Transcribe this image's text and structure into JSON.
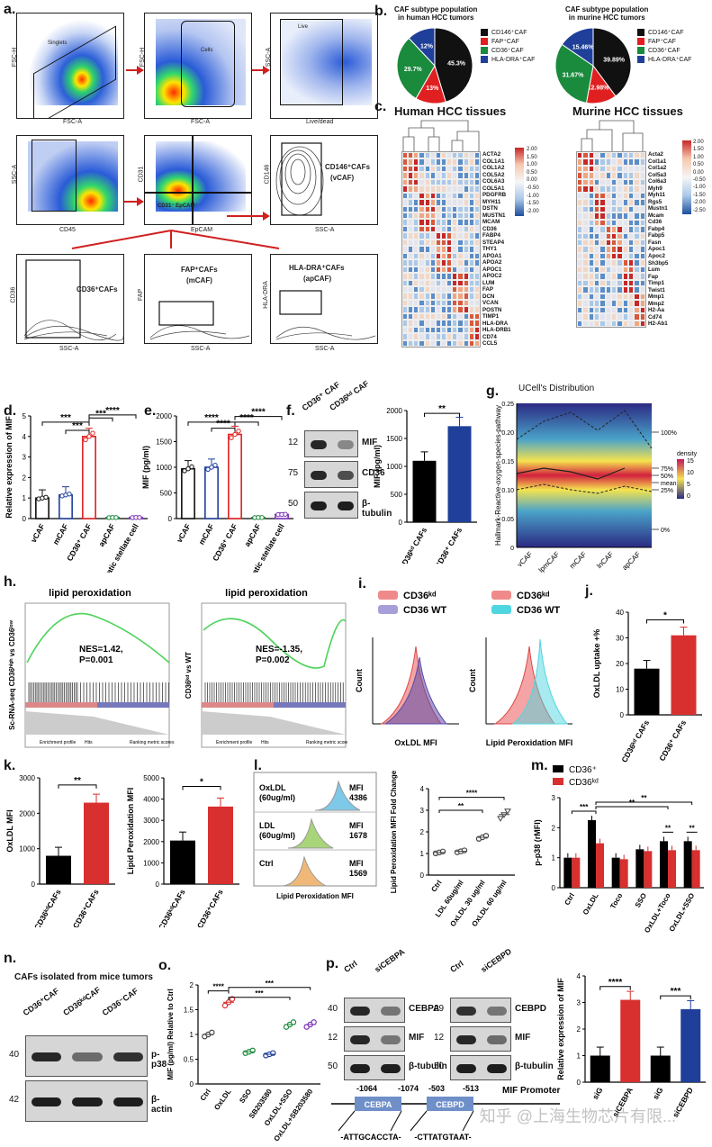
{
  "panels": {
    "a": "a.",
    "b": "b.",
    "c": "c.",
    "d": "d.",
    "e": "e.",
    "f": "f.",
    "g": "g.",
    "h": "h.",
    "i": "i.",
    "j": "j.",
    "k": "k.",
    "l": "l.",
    "m": "m.",
    "n": "n.",
    "o": "o.",
    "p": "p."
  },
  "flow": {
    "singlets": "Singlets",
    "cells": "Cells",
    "live": "Live",
    "cd146_caf": "CD146⁺CAFs",
    "cd146_caf_sub": "(vCAF)",
    "cd31_epcam": "CD31⁻ EpCAM⁻",
    "cd36_caf": "CD36⁺CAFs",
    "fap_caf": "FAP⁺CAFs",
    "fap_caf_sub": "(mCAF)",
    "hla_caf": "HLA-DRA⁺CAFs",
    "hla_caf_sub": "(apCAF)",
    "axes": {
      "fsc_h": "FSC-H",
      "fsc_a": "FSC-A",
      "ssc_a": "SSC-A",
      "live_dead": "Live/dead",
      "cd45": "CD45",
      "cd31": "CD31",
      "epcam": "EpCAM",
      "cd146": "CD146",
      "cd36": "CD36",
      "fap": "FAP",
      "hla_dra": "HLA-DRA"
    }
  },
  "pies": {
    "human_title": "CAF subtype population\nin human HCC tumors",
    "murine_title": "CAF subtype population\nin murine HCC tumors",
    "legend": [
      "CD146⁺CAF",
      "FAP⁺CAF",
      "CD36⁺CAF",
      "HLA-DRA⁺CAF"
    ],
    "colors": [
      "#111111",
      "#e02020",
      "#1a8a3c",
      "#1f3f9a"
    ],
    "human_values": [
      "45.3%",
      "13%",
      "29.7%",
      "12%"
    ],
    "murine_values": [
      "39.89%",
      "12.98%",
      "31.67%",
      "15.46%"
    ]
  },
  "heatmaps": {
    "human_title": "Human HCC tissues",
    "murine_title": "Murine HCC tissues",
    "human_genes": [
      "ACTA2",
      "COL1A1",
      "COL1A2",
      "COL5A2",
      "COL6A3",
      "COL5A1",
      "PDGFRB",
      "MYH11",
      "DSTN",
      "MUSTN1",
      "MCAM",
      "CD36",
      "FABP4",
      "STEAP4",
      "THY1",
      "APOA1",
      "APOA2",
      "APOC1",
      "APOC2",
      "LUM",
      "FAP",
      "DCN",
      "VCAN",
      "POSTN",
      "TIMP1",
      "HLA-DRA",
      "HLA-DRB1",
      "CD74",
      "CCL5"
    ],
    "murine_genes": [
      "Acta2",
      "Col1a1",
      "Col1a2",
      "Col5a3",
      "Col6a3",
      "Myh9",
      "Myh11",
      "Rgs5",
      "Mustn1",
      "Mcam",
      "Cd36",
      "Fabp4",
      "Fabp5",
      "Fasn",
      "Apoc1",
      "Apoc2",
      "Sh3bp5",
      "Lum",
      "Fap",
      "Timp1",
      "Twist1",
      "Mmp1",
      "Mmp2",
      "H2-Aa",
      "Cd74",
      "H2-Ab1"
    ],
    "human_scale": [
      "2.00",
      "1.50",
      "1.00",
      "0.50",
      "0.00",
      "-0.50",
      "-1.00",
      "-1.50",
      "-2.00"
    ],
    "murine_scale": [
      "2.00",
      "1.50",
      "1.00",
      "0.50",
      "0.00",
      "-0.50",
      "-1.00",
      "-1.50",
      "-2.00",
      "-2.50"
    ]
  },
  "chart_data": [
    {
      "panel": "d",
      "type": "bar",
      "categories": [
        "vCAF",
        "mCAF",
        "CD36⁺ CAF",
        "apCAF",
        "Hepatic stellate cell"
      ],
      "values": [
        1.0,
        1.15,
        4.0,
        0.05,
        0.05
      ],
      "ylabel": "Relative expression of MIF",
      "ylim": [
        0,
        5
      ],
      "significance": [
        "***",
        "***",
        "***",
        "****"
      ]
    },
    {
      "panel": "e",
      "type": "bar",
      "categories": [
        "vCAF",
        "mCAF",
        "CD36⁺ CAF",
        "apCAF",
        "Hepatic stellate cell"
      ],
      "values": [
        970,
        1000,
        1640,
        20,
        80
      ],
      "ylabel": "MIF (pg/ml)",
      "ylim": [
        0,
        2000
      ],
      "significance": [
        "****",
        "****",
        "****",
        "****"
      ]
    },
    {
      "panel": "f",
      "type": "bar",
      "categories": [
        "CD36ᵏᵈ CAFs",
        "CD36⁺ CAFs"
      ],
      "values": [
        1100,
        1720
      ],
      "ylabel": "MIF (pg/ml)",
      "ylim": [
        0,
        2000
      ],
      "significance": [
        "**"
      ]
    },
    {
      "panel": "j",
      "type": "bar",
      "categories": [
        "CD36ᵏᵈ CAFs",
        "CD36⁺ CAFs"
      ],
      "values": [
        18,
        31
      ],
      "ylabel": "OxLDL uptake +%",
      "ylim": [
        0,
        40
      ],
      "significance": [
        "*"
      ]
    },
    {
      "panel": "k1",
      "type": "bar",
      "categories": [
        "CD36ᵏᵈCAFs",
        "CD36⁺CAFs"
      ],
      "values": [
        800,
        2300
      ],
      "ylabel": "OxLDL MFI",
      "ylim": [
        0,
        3000
      ],
      "significance": [
        "**"
      ]
    },
    {
      "panel": "k2",
      "type": "bar",
      "categories": [
        "CD36ᵏᵈCAFs",
        "CD36⁺CAFs"
      ],
      "values": [
        2050,
        3650
      ],
      "ylabel": "Lipid Peroxidation MFI",
      "ylim": [
        0,
        5000
      ],
      "significance": [
        "*"
      ]
    },
    {
      "panel": "l",
      "type": "scatter",
      "categories": [
        "Ctrl",
        "LDL 60ug/ml",
        "OxLDL 30 ug/ml",
        "OxLDL 60 ug/ml"
      ],
      "values": [
        1.05,
        1.1,
        1.75,
        2.8
      ],
      "ylabel": "Lipid Peroxidation MFI Fold Change",
      "ylim": [
        0,
        4
      ],
      "significance": [
        "**",
        "****"
      ]
    },
    {
      "panel": "m",
      "type": "bar",
      "categories": [
        "Ctrl",
        "OxLDL",
        "Toco",
        "SSO",
        "OxLDL+Toco",
        "OxLDL+SSO"
      ],
      "series": [
        {
          "name": "CD36⁺",
          "values": [
            1.0,
            2.25,
            1.0,
            1.28,
            1.55,
            1.55
          ]
        },
        {
          "name": "CD36ᵏᵈ",
          "values": [
            1.0,
            1.48,
            0.95,
            1.22,
            1.25,
            1.25
          ]
        }
      ],
      "ylabel": "p-p38 (rMFI)",
      "ylim": [
        0,
        3
      ],
      "significance": [
        "***",
        "**",
        "**",
        "**",
        "**"
      ]
    },
    {
      "panel": "o",
      "type": "scatter",
      "categories": [
        "Ctrl",
        "OxLDL",
        "SSO",
        "SB203580",
        "OxLDL+SSO",
        "OxLDL+SB203580"
      ],
      "values": [
        1.0,
        1.65,
        0.65,
        0.6,
        1.2,
        1.2
      ],
      "ylabel": "MIF (pg/ml) Relative to Ctrl",
      "ylim": [
        0,
        2
      ],
      "significance": [
        "****",
        "***",
        "***"
      ]
    },
    {
      "panel": "p",
      "type": "bar",
      "categories": [
        "siG",
        "siCEBPA",
        "siG",
        "siCEBPD"
      ],
      "values": [
        1.0,
        3.1,
        1.0,
        2.75
      ],
      "ylabel": "Relative expression of MIF",
      "ylim": [
        0,
        4
      ],
      "significance": [
        "****",
        "***"
      ]
    }
  ],
  "g": {
    "title": "UCell's Distribution",
    "ylabel": "Hallmark-Reactive-oxygen-species-pathway",
    "categories": [
      "vCAF",
      "lpmCAF",
      "mCAF",
      "lnCAF",
      "apCAF"
    ],
    "right_labels": [
      "100%",
      "75%",
      "50%",
      "mean",
      "25%",
      "0%"
    ],
    "legend_title": "density",
    "legend_ticks": [
      "15",
      "10",
      "5",
      "0"
    ],
    "yticks": [
      "0.25",
      "0.20",
      "0.15",
      "0.10",
      "0.05",
      "0"
    ]
  },
  "h": {
    "title1": "lipid peroxidation",
    "title2": "lipid peroxidation",
    "stat1": "NES=1.42,\nP=0.001",
    "stat2": "NES=-1.35,\nP=0.002",
    "ylabel1": "Sc-RNA-seq CD36ʰⁱᵍʰ vs CD36ˡᵒʷ",
    "ylabel2": "CD36ᵏᵈ vs WT",
    "legend": [
      "Enrichment profile",
      "Hits",
      "Ranking metric scores"
    ]
  },
  "i": {
    "legend1": [
      "CD36ᵏᵈ",
      "CD36 WT"
    ],
    "legend2": [
      "CD36ᵏᵈ",
      "CD36 WT"
    ],
    "xlabel1": "OxLDL MFI",
    "xlabel2": "Lipid Peroxidation MFI",
    "ylabel": "Count"
  },
  "l_hist": {
    "rows": [
      {
        "label": "OxLDL\n(60ug/ml)",
        "mfi": "MFI\n4386"
      },
      {
        "label": "LDL\n(60ug/ml)",
        "mfi": "MFI\n1678"
      },
      {
        "label": "Ctrl",
        "mfi": "MFI\n1569"
      }
    ],
    "xlabel": "Lipid Peroxidation MFI"
  },
  "m_legend": [
    "CD36⁺",
    "CD36ᵏᵈ"
  ],
  "n": {
    "title": "CAFs isolated from mice tumors",
    "lanes": [
      "CD36⁺CAF",
      "CD36ᵏᵈCAF",
      "CD36⁻CAF"
    ],
    "bands": [
      "p-p38",
      "β-actin"
    ],
    "mw": [
      "40",
      "42"
    ]
  },
  "f_blot": {
    "lanes": [
      "CD36⁺ CAF",
      "CD36ᵏᵈ CAF"
    ],
    "bands": [
      "MIF",
      "CD36",
      "β-tubulin"
    ],
    "mw": [
      "12",
      "75",
      "50"
    ]
  },
  "p_blot": {
    "left_lanes": [
      "Ctrl",
      "siCEBPA"
    ],
    "left_bands": [
      "CEBPA",
      "MIF",
      "β-tubulin"
    ],
    "left_mw": [
      "40",
      "12",
      "50"
    ],
    "right_lanes": [
      "Ctrl",
      "siCEBPD"
    ],
    "right_bands": [
      "CEBPD",
      "MIF",
      "β-tubulin"
    ],
    "right_mw": [
      "29",
      "12",
      "50"
    ],
    "promoter_title": "MIF Promoter",
    "positions": [
      "-1064",
      "-1074",
      "-503",
      "-513"
    ],
    "boxes": [
      "CEBPA",
      "CEBPD"
    ],
    "seqs": [
      "-ATTGCACCTA-",
      "-CTTATGTAAT-"
    ]
  },
  "watermark": "知乎 @上海生物芯片有限..."
}
